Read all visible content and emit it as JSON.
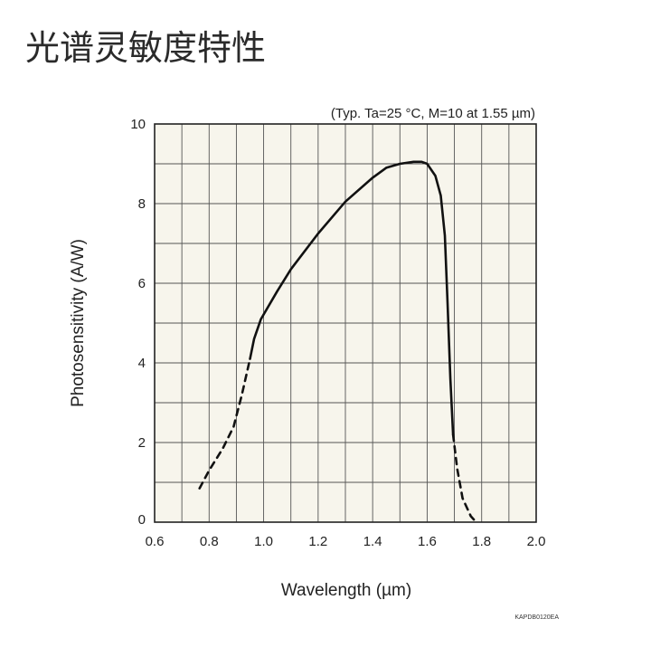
{
  "page": {
    "title": "光谱灵敏度特性"
  },
  "chart_data": {
    "type": "line",
    "title": "",
    "condition_note": "(Typ. Ta=25 °C, M=10 at 1.55 µm)",
    "xlabel": "Wavelength (µm)",
    "ylabel": "Photosensitivity (A/W)",
    "xlim": [
      0.6,
      2.0
    ],
    "ylim": [
      0,
      10
    ],
    "x_ticks": [
      "0.6",
      "0.8",
      "1.0",
      "1.2",
      "1.4",
      "1.6",
      "1.8",
      "2.0"
    ],
    "y_ticks": [
      "0",
      "2",
      "4",
      "6",
      "8",
      "10"
    ],
    "grid": true,
    "plot_background": "#f7f5ec",
    "line_color": "#111111",
    "figure_code": "KAPDB0120EA",
    "series": [
      {
        "segments": [
          {
            "style": "dashed",
            "points": [
              [
                0.765,
                0.85
              ],
              [
                0.8,
                1.3
              ],
              [
                0.85,
                1.85
              ],
              [
                0.89,
                2.4
              ],
              [
                0.92,
                3.2
              ],
              [
                0.95,
                4.1
              ]
            ]
          },
          {
            "style": "solid",
            "points": [
              [
                0.95,
                4.1
              ],
              [
                0.965,
                4.6
              ],
              [
                0.99,
                5.1
              ],
              [
                1.05,
                5.8
              ],
              [
                1.1,
                6.35
              ],
              [
                1.2,
                7.25
              ],
              [
                1.3,
                8.05
              ],
              [
                1.4,
                8.65
              ],
              [
                1.45,
                8.9
              ],
              [
                1.5,
                9.0
              ],
              [
                1.55,
                9.05
              ],
              [
                1.58,
                9.05
              ],
              [
                1.6,
                9.0
              ],
              [
                1.63,
                8.7
              ],
              [
                1.65,
                8.2
              ],
              [
                1.665,
                7.2
              ],
              [
                1.675,
                5.5
              ],
              [
                1.685,
                3.6
              ],
              [
                1.695,
                2.2
              ]
            ]
          },
          {
            "style": "dashed",
            "points": [
              [
                1.695,
                2.2
              ],
              [
                1.71,
                1.35
              ],
              [
                1.73,
                0.6
              ],
              [
                1.76,
                0.15
              ],
              [
                1.78,
                0.0
              ]
            ]
          }
        ]
      }
    ]
  }
}
